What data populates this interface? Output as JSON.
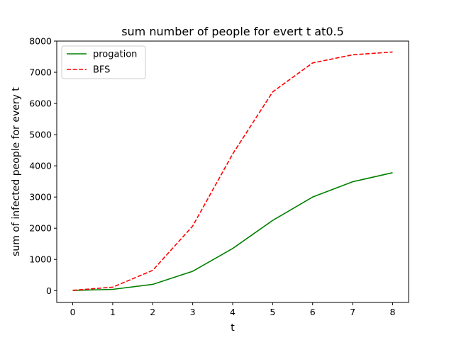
{
  "chart_data": {
    "type": "line",
    "title": "sum number of people for evert t at0.5",
    "xlabel": "t",
    "ylabel": "sum of infected people for every t",
    "x": [
      0,
      1,
      2,
      3,
      4,
      5,
      6,
      7,
      8
    ],
    "xlim": [
      -0.4,
      8.4
    ],
    "ylim": [
      -380,
      8000
    ],
    "xticks": [
      0,
      1,
      2,
      3,
      4,
      5,
      6,
      7,
      8
    ],
    "yticks": [
      0,
      1000,
      2000,
      3000,
      4000,
      5000,
      6000,
      7000,
      8000
    ],
    "grid": false,
    "legend_position": "upper-left",
    "series": [
      {
        "name": "progation",
        "color": "#008000",
        "style": "solid",
        "values": [
          5,
          40,
          200,
          620,
          1350,
          2250,
          3000,
          3490,
          3780
        ]
      },
      {
        "name": "BFS",
        "color": "#ff0000",
        "style": "dashed",
        "values": [
          10,
          110,
          650,
          2070,
          4380,
          6370,
          7300,
          7560,
          7650
        ]
      }
    ]
  }
}
